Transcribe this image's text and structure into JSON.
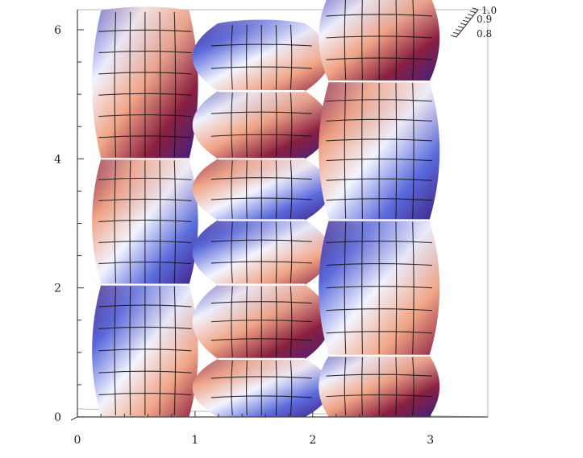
{
  "chart_data": {
    "type": "surface",
    "title": "",
    "xlabel": "",
    "ylabel": "",
    "xlim": [
      0,
      3.14
    ],
    "ylim": [
      0,
      6.28
    ],
    "zlim": [
      0.8,
      1.0
    ],
    "x_ticks": [
      "0",
      "1",
      "2",
      "3"
    ],
    "y_ticks": [
      "0",
      "2",
      "4",
      "6"
    ],
    "z_ticks": [
      "1.0",
      "0.9",
      "0.8"
    ],
    "columns": 3,
    "rows": 4,
    "grid": true,
    "colors": {
      "low": "#3f1f84",
      "mid_blue": "#5b6bdc",
      "light": "#f3f4ff",
      "salmon": "#f0a486",
      "high": "#8a2040",
      "mesh": "#111111",
      "seam": "#ffffff"
    }
  }
}
